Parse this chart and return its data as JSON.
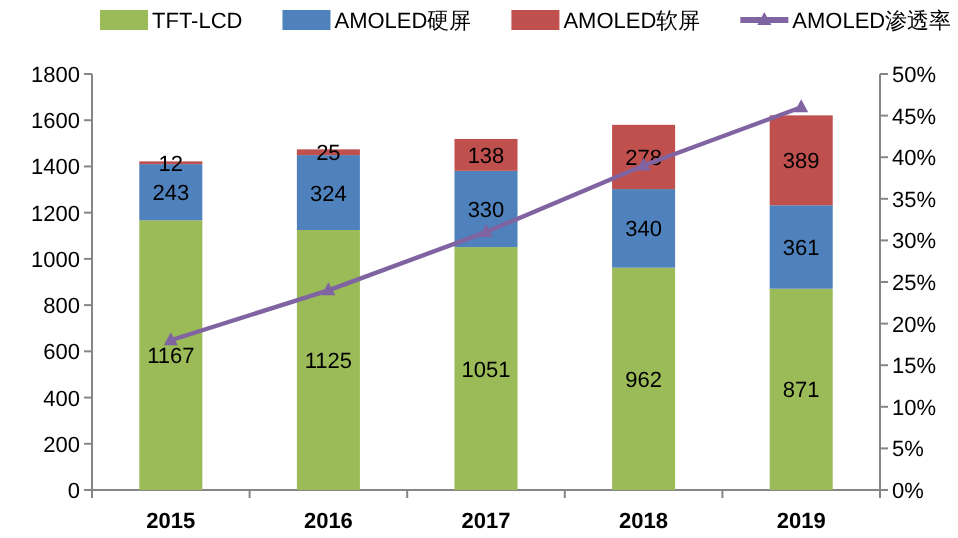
{
  "chart_data": {
    "type": "bar",
    "stacked": true,
    "categories": [
      "2015",
      "2016",
      "2017",
      "2018",
      "2019"
    ],
    "series": [
      {
        "name": "TFT-LCD",
        "color": "#9bbb59",
        "values": [
          1167,
          1125,
          1051,
          962,
          871
        ],
        "value_labels": [
          "1167",
          "1125",
          "1051",
          "962",
          "871"
        ]
      },
      {
        "name": "AMOLED硬屏",
        "color": "#4f81bd",
        "values": [
          243,
          324,
          330,
          340,
          361
        ],
        "value_labels": [
          "243",
          "324",
          "330",
          "340",
          "361"
        ]
      },
      {
        "name": "AMOLED软屏",
        "color": "#c0504d",
        "values": [
          12,
          25,
          138,
          278,
          389
        ],
        "value_labels": [
          "12",
          "25",
          "138",
          "278",
          "389"
        ]
      },
      {
        "name": "AMOLED渗透率",
        "type": "line",
        "axis": "y2",
        "color": "#8064a2",
        "marker": "triangle",
        "values": [
          18,
          24,
          31,
          39,
          46
        ]
      }
    ],
    "legend": "top",
    "grid": false,
    "ylim": [
      0,
      1800
    ],
    "yticks": [
      0,
      200,
      400,
      600,
      800,
      1000,
      1200,
      1400,
      1600,
      1800
    ],
    "y2lim": [
      0,
      50
    ],
    "y2ticks": [
      {
        "value": 0,
        "label": "0%"
      },
      {
        "value": 5,
        "label": "5%"
      },
      {
        "value": 10,
        "label": "10%"
      },
      {
        "value": 15,
        "label": "15%"
      },
      {
        "value": 20,
        "label": "20%"
      },
      {
        "value": 25,
        "label": "25%"
      },
      {
        "value": 30,
        "label": "30%"
      },
      {
        "value": 35,
        "label": "35%"
      },
      {
        "value": 40,
        "label": "40%"
      },
      {
        "value": 45,
        "label": "45%"
      },
      {
        "value": 50,
        "label": "50%"
      }
    ]
  }
}
